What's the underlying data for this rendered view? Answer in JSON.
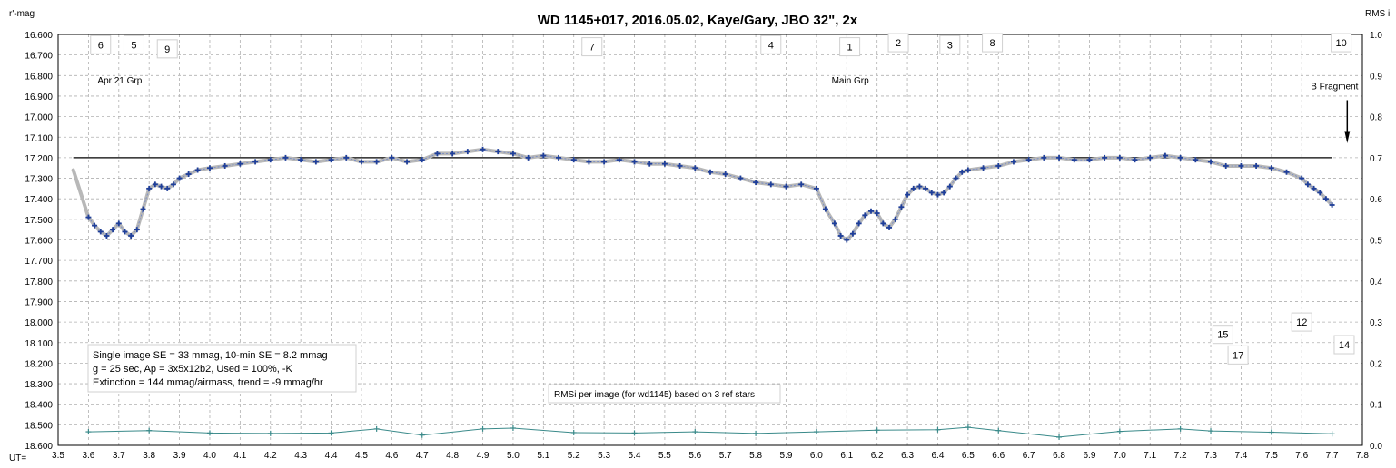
{
  "chart_data": {
    "type": "scatter",
    "title": "WD 1145+017,  2016.05.02,  Kaye/Gary,  JBO 32\", 2x",
    "ylabel": "r'-mag",
    "y2label": "RMS i",
    "xlabel": "UT=",
    "xlim": [
      3.5,
      7.8
    ],
    "ylim": [
      16.6,
      18.6
    ],
    "y_inverted": true,
    "y2lim": [
      0.0,
      1.0
    ],
    "grid": true,
    "x_ticks": [
      "3.5",
      "3.6",
      "3.7",
      "3.8",
      "3.9",
      "4.0",
      "4.1",
      "4.2",
      "4.3",
      "4.4",
      "4.5",
      "4.6",
      "4.7",
      "4.8",
      "4.9",
      "5.0",
      "5.1",
      "5.2",
      "5.3",
      "5.4",
      "5.5",
      "5.6",
      "5.7",
      "5.8",
      "5.9",
      "6.0",
      "6.1",
      "6.2",
      "6.3",
      "6.4",
      "6.5",
      "6.6",
      "6.7",
      "6.8",
      "6.9",
      "7.0",
      "7.1",
      "7.2",
      "7.3",
      "7.4",
      "7.5",
      "7.6",
      "7.7",
      "7.8"
    ],
    "y_ticks": [
      "16.600",
      "16.700",
      "16.800",
      "16.900",
      "17.000",
      "17.100",
      "17.200",
      "17.300",
      "17.400",
      "17.500",
      "17.600",
      "17.700",
      "17.800",
      "17.900",
      "18.000",
      "18.100",
      "18.200",
      "18.300",
      "18.400",
      "18.500",
      "18.600"
    ],
    "y2_ticks": [
      "1.0",
      "0.9",
      "0.8",
      "0.7",
      "0.6",
      "0.5",
      "0.4",
      "0.3",
      "0.2",
      "0.1",
      "0.0"
    ],
    "reference_line": 17.2,
    "series": [
      {
        "role": "magnitude",
        "x": [
          3.6,
          3.62,
          3.64,
          3.66,
          3.68,
          3.7,
          3.72,
          3.74,
          3.76,
          3.78,
          3.8,
          3.82,
          3.84,
          3.86,
          3.88,
          3.9,
          3.93,
          3.96,
          4.0,
          4.05,
          4.1,
          4.15,
          4.2,
          4.25,
          4.3,
          4.35,
          4.4,
          4.45,
          4.5,
          4.55,
          4.6,
          4.65,
          4.7,
          4.75,
          4.8,
          4.85,
          4.9,
          4.95,
          5.0,
          5.05,
          5.1,
          5.15,
          5.2,
          5.25,
          5.3,
          5.35,
          5.4,
          5.45,
          5.5,
          5.55,
          5.6,
          5.65,
          5.7,
          5.75,
          5.8,
          5.85,
          5.9,
          5.95,
          6.0,
          6.03,
          6.06,
          6.08,
          6.1,
          6.12,
          6.14,
          6.16,
          6.18,
          6.2,
          6.22,
          6.24,
          6.26,
          6.28,
          6.3,
          6.32,
          6.34,
          6.36,
          6.38,
          6.4,
          6.42,
          6.44,
          6.46,
          6.48,
          6.5,
          6.55,
          6.6,
          6.65,
          6.7,
          6.75,
          6.8,
          6.85,
          6.9,
          6.95,
          7.0,
          7.05,
          7.1,
          7.15,
          7.2,
          7.25,
          7.3,
          7.35,
          7.4,
          7.45,
          7.5,
          7.55,
          7.6,
          7.62,
          7.64,
          7.66,
          7.68,
          7.7
        ],
        "y": [
          17.49,
          17.53,
          17.56,
          17.58,
          17.55,
          17.52,
          17.56,
          17.58,
          17.55,
          17.45,
          17.35,
          17.33,
          17.34,
          17.35,
          17.33,
          17.3,
          17.28,
          17.26,
          17.25,
          17.24,
          17.23,
          17.22,
          17.21,
          17.2,
          17.21,
          17.22,
          17.21,
          17.2,
          17.22,
          17.22,
          17.2,
          17.22,
          17.21,
          17.18,
          17.18,
          17.17,
          17.16,
          17.17,
          17.18,
          17.2,
          17.19,
          17.2,
          17.21,
          17.22,
          17.22,
          17.21,
          17.22,
          17.23,
          17.23,
          17.24,
          17.25,
          17.27,
          17.28,
          17.3,
          17.32,
          17.33,
          17.34,
          17.33,
          17.35,
          17.45,
          17.52,
          17.58,
          17.6,
          17.57,
          17.52,
          17.48,
          17.46,
          17.47,
          17.52,
          17.54,
          17.5,
          17.44,
          17.38,
          17.35,
          17.34,
          17.35,
          17.37,
          17.38,
          17.37,
          17.34,
          17.3,
          17.27,
          17.26,
          17.25,
          17.24,
          17.22,
          17.21,
          17.2,
          17.2,
          17.21,
          17.21,
          17.2,
          17.2,
          17.21,
          17.2,
          17.19,
          17.2,
          17.21,
          17.22,
          17.24,
          17.24,
          17.24,
          17.25,
          17.27,
          17.3,
          17.33,
          17.35,
          17.37,
          17.4,
          17.43
        ]
      },
      {
        "role": "rms",
        "x": [
          3.6,
          3.8,
          4.0,
          4.2,
          4.4,
          4.55,
          4.7,
          4.9,
          5.0,
          5.2,
          5.4,
          5.6,
          5.8,
          6.0,
          6.2,
          6.4,
          6.5,
          6.6,
          6.8,
          7.0,
          7.2,
          7.3,
          7.5,
          7.7
        ],
        "y": [
          0.033,
          0.036,
          0.03,
          0.029,
          0.03,
          0.04,
          0.025,
          0.04,
          0.042,
          0.031,
          0.03,
          0.033,
          0.029,
          0.033,
          0.037,
          0.038,
          0.044,
          0.036,
          0.02,
          0.034,
          0.04,
          0.035,
          0.032,
          0.028
        ]
      }
    ],
    "fragment_labels": [
      {
        "text": "6",
        "x": 3.64,
        "y": 16.65
      },
      {
        "text": "5",
        "x": 3.75,
        "y": 16.65
      },
      {
        "text": "9",
        "x": 3.86,
        "y": 16.67
      },
      {
        "text": "7",
        "x": 5.26,
        "y": 16.66
      },
      {
        "text": "4",
        "x": 5.85,
        "y": 16.65
      },
      {
        "text": "1",
        "x": 6.11,
        "y": 16.66
      },
      {
        "text": "2",
        "x": 6.27,
        "y": 16.64
      },
      {
        "text": "3",
        "x": 6.44,
        "y": 16.65
      },
      {
        "text": "8",
        "x": 6.58,
        "y": 16.64
      },
      {
        "text": "10",
        "x": 7.73,
        "y": 16.64
      },
      {
        "text": "15",
        "x": 7.34,
        "y": 18.06
      },
      {
        "text": "12",
        "x": 7.6,
        "y": 18.0
      },
      {
        "text": "17",
        "x": 7.39,
        "y": 18.16
      },
      {
        "text": "14",
        "x": 7.74,
        "y": 18.11
      }
    ],
    "annotations": [
      {
        "text": "Apr 21 Grp",
        "x": 3.63,
        "y": 16.82
      },
      {
        "text": "Main Grp",
        "x": 6.05,
        "y": 16.82
      },
      {
        "text": "B Fragment",
        "x": 7.63,
        "y": 16.85
      }
    ],
    "info_lines": [
      "Single image SE = 33 mmag, 10-min SE = 8.2 mmag",
      "g = 25 sec, Ap = 3x5x12b2, Used = 100%, -K",
      "Extinction = 144 mmag/airmass, trend = -9 mmag/hr"
    ],
    "rms_note": "RMSi per image (for wd1145) based on 3 ref stars",
    "colors": {
      "points": "#1f3f9a",
      "trend": "#b8b8b8",
      "rms": "#3a8a8a",
      "grid": "#b0b0b0",
      "axis": "#000000"
    }
  }
}
